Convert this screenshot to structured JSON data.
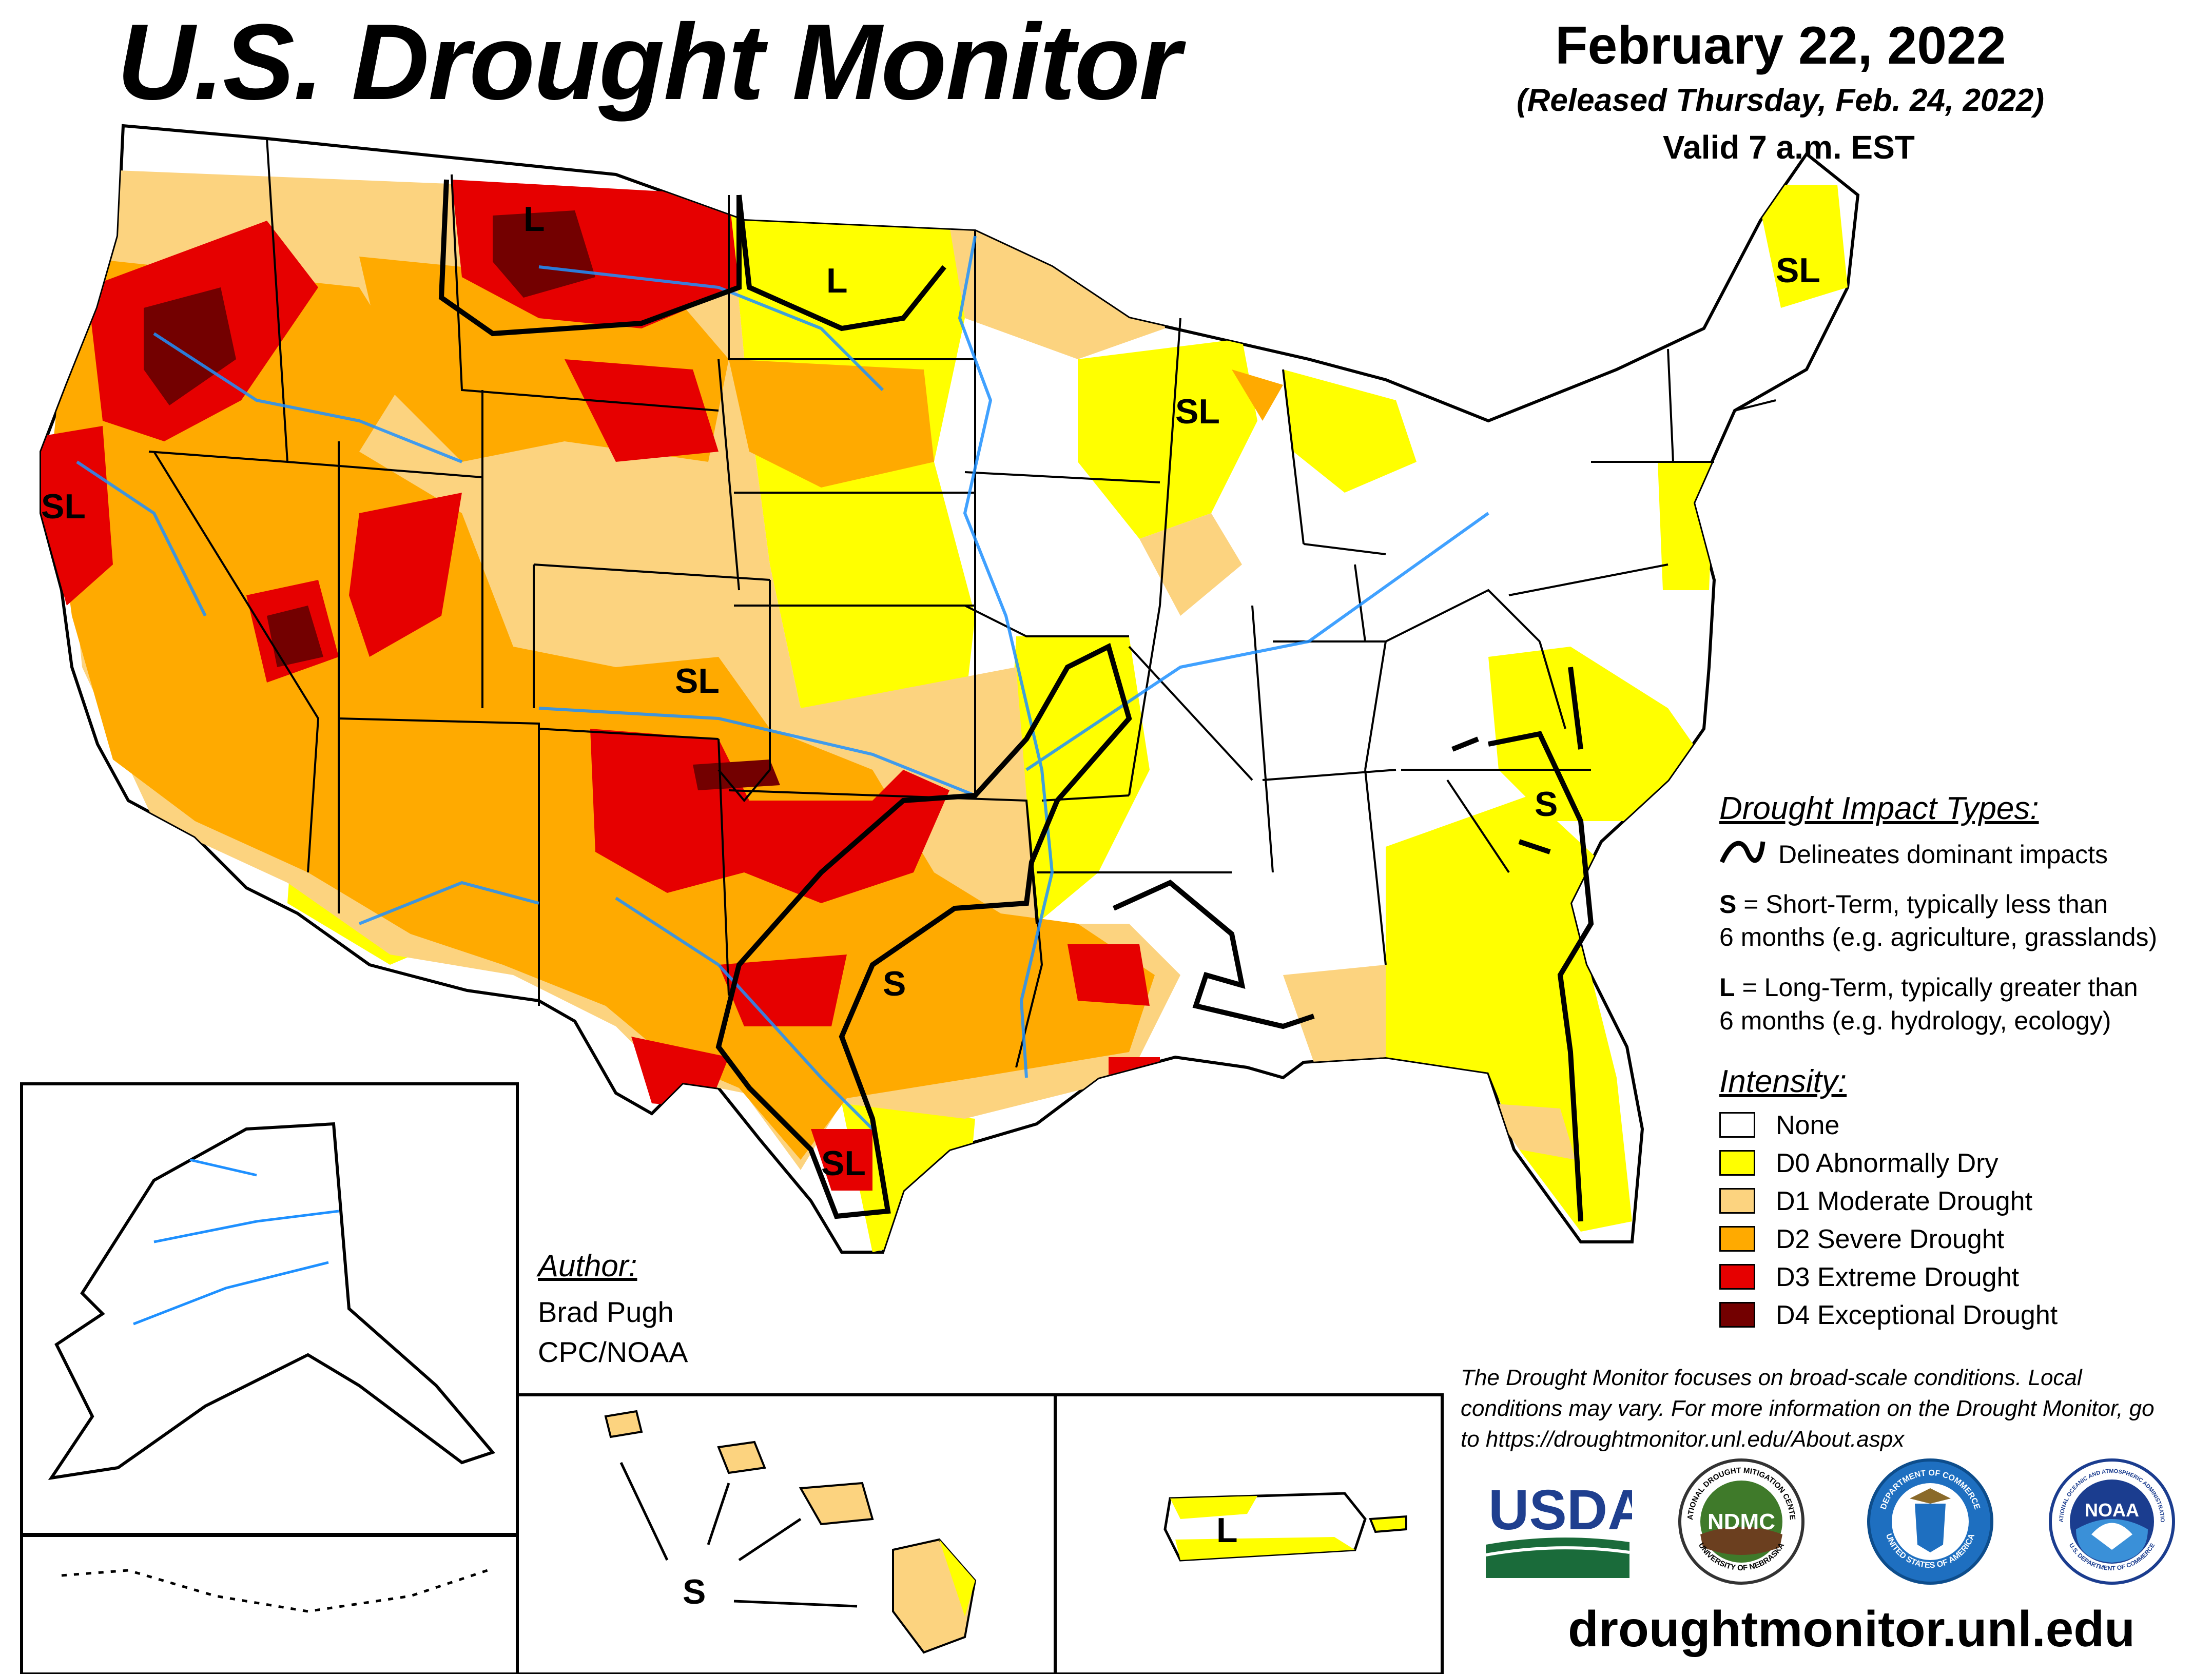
{
  "header": {
    "title": "U.S. Drought Monitor",
    "date": "February 22, 2022",
    "released": "(Released Thursday, Feb. 24, 2022)",
    "valid": "Valid 7 a.m. EST"
  },
  "map_labels": {
    "montana_l": "L",
    "dakota_l": "L",
    "maine_sl": "SL",
    "wisconsin_sl": "SL",
    "california_sl": "SL",
    "colorado_sl": "SL",
    "carolina_s": "S",
    "texas_s": "S",
    "south_texas_sl": "SL",
    "hawaii_s": "S",
    "puerto_rico_l": "L"
  },
  "impact_legend": {
    "heading": "Drought Impact Types:",
    "delineates": "Delineates dominant impacts",
    "s_letter": "S",
    "s_text_1": " = Short-Term, typically less than",
    "s_text_2": "6 months (e.g. agriculture, grasslands)",
    "l_letter": "L",
    "l_text_1": " = Long-Term, typically greater than",
    "l_text_2": "6 months (e.g. hydrology, ecology)"
  },
  "intensity_legend": {
    "heading": "Intensity:",
    "items": [
      {
        "label": "None",
        "color": "#ffffff"
      },
      {
        "label": "D0 Abnormally Dry",
        "color": "#ffff00"
      },
      {
        "label": "D1 Moderate Drought",
        "color": "#fcd37f"
      },
      {
        "label": "D2 Severe Drought",
        "color": "#ffaa00"
      },
      {
        "label": "D3 Extreme Drought",
        "color": "#e60000"
      },
      {
        "label": "D4 Exceptional Drought",
        "color": "#730000"
      }
    ]
  },
  "author": {
    "heading": "Author:",
    "name": "Brad Pugh",
    "org": "CPC/NOAA"
  },
  "disclaimer": "The Drought Monitor focuses on broad-scale conditions. Local conditions may vary. For more information on the Drought Monitor, go to https://droughtmonitor.unl.edu/About.aspx",
  "logos": {
    "usda": "USDA",
    "ndmc": "NDMC",
    "ndmc_ring_top": "NATIONAL DROUGHT MITIGATION CENTER",
    "ndmc_ring_bottom": "UNIVERSITY OF NEBRASKA",
    "commerce_ring_top": "DEPARTMENT OF COMMERCE",
    "commerce_ring_bottom": "UNITED STATES OF AMERICA",
    "noaa": "NOAA",
    "noaa_ring_top": "NATIONAL OCEANIC AND ATMOSPHERIC ADMINISTRATION",
    "noaa_ring_bottom": "U.S. DEPARTMENT OF COMMERCE"
  },
  "website": "droughtmonitor.unl.edu"
}
